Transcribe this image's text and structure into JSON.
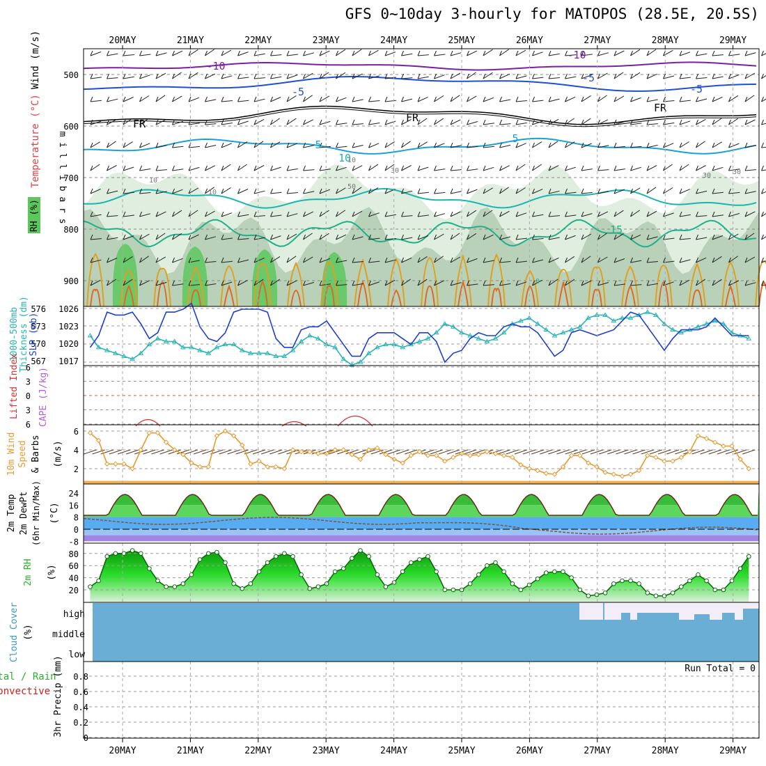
{
  "title": "GFS 0~10day 3-hourly for MATOPOS (28.5E, 20.5S)",
  "dates": [
    "20MAY",
    "21MAY",
    "22MAY",
    "23MAY",
    "24MAY",
    "25MAY",
    "26MAY",
    "27MAY",
    "28MAY",
    "29MAY"
  ],
  "colors": {
    "contour_neg10": "#7b1fa2",
    "contour_neg5": "#1e4fd6",
    "contour_fr": "#000000",
    "contour_5": "#1aa0d8",
    "contour_10": "#19b5b0",
    "contour_15": "#1fb089",
    "contour_20": "#e0a020",
    "contour_25": "#e06a20",
    "rh_dark": "#5cc85c",
    "rh_mid": "#a8c4a8",
    "rh_light": "#dfeedf",
    "slp": "#1c3fd0",
    "thickness": "#2ab5b5",
    "lifted_index": "#d63030",
    "cape": "#b060d0",
    "wind": "#e89a30",
    "cloud": "#6aaed6",
    "cloud_clear": "#f2eef7",
    "rh2m": "#2bd02b",
    "precip_total": "#2bb02b",
    "precip_conv": "#d02020"
  },
  "panels": {
    "main": {
      "ylabel": "m i l l i b a r s",
      "yticks": [
        "500",
        "600",
        "700",
        "800",
        "900"
      ],
      "legend_wind": "Wind (m/s)",
      "legend_temp": "Temperature (°C)",
      "legend_rh": "RH (%)",
      "labels": [
        "-10",
        "-10",
        "-5",
        "-5",
        "FR",
        "FR",
        "FR",
        "-5",
        "5",
        "5",
        "10",
        "15",
        "10",
        "30",
        "30",
        "10",
        "30",
        "50",
        "10",
        "0"
      ]
    },
    "slp": {
      "ylabel_left": "1000-500mb",
      "ylabel_left2": "Thickness (dm)",
      "ylabel_right": "SLP (mb)",
      "ticks_left": [
        "576",
        "573",
        "570",
        "567"
      ],
      "ticks_right": [
        "1026",
        "1023",
        "1020",
        "1017"
      ]
    },
    "li": {
      "ylabel": "Lifted Index",
      "ylabel2": "CAPE (J/kg)",
      "ticks": [
        "6",
        "3",
        "0",
        "3",
        "6"
      ]
    },
    "wind": {
      "ylabel": "10m Wind",
      "ylabel2": "Speed",
      "ylabel3": "& Barbs",
      "ylabel4": "(m/s)",
      "ticks": [
        "6",
        "4",
        "2"
      ]
    },
    "temp": {
      "ylabel": "2m Temp",
      "ylabel2": "2m DewPt",
      "ylabel3": "(6hr Min/Max)",
      "ylabel4": "(°C)",
      "ticks": [
        "24",
        "16",
        "8",
        "0",
        "-8"
      ]
    },
    "rh": {
      "ylabel": "2m RH",
      "ylabel2": "(%)",
      "ticks": [
        "80",
        "60",
        "40",
        "20"
      ]
    },
    "cloud": {
      "ylabel": "Cloud Cover",
      "ylabel2": "(%)",
      "ticks": [
        "high",
        "middle",
        "low"
      ]
    },
    "precip": {
      "ylabel": "Total / Rain",
      "ylabel2": "Convective",
      "ylabel3": "3hr Precip (mm)",
      "ticks": [
        "0.8",
        "0.6",
        "0.4",
        "0.2",
        "0"
      ],
      "run_total": "Run Total = 0"
    }
  },
  "chart_data": {
    "type": "line",
    "x": [
      "19MAY12",
      "19MAY15",
      "19MAY18",
      "19MAY21",
      "20MAY00",
      "20MAY03",
      "20MAY06",
      "20MAY09",
      "20MAY12",
      "20MAY15",
      "20MAY18",
      "20MAY21",
      "21MAY00",
      "21MAY03",
      "21MAY06",
      "21MAY09",
      "21MAY12",
      "21MAY15",
      "21MAY18",
      "21MAY21",
      "22MAY00",
      "22MAY03",
      "22MAY06",
      "22MAY09",
      "22MAY12",
      "22MAY15",
      "22MAY18",
      "22MAY21",
      "23MAY00",
      "23MAY03",
      "23MAY06",
      "23MAY09",
      "23MAY12",
      "23MAY15",
      "23MAY18",
      "23MAY21",
      "24MAY00",
      "24MAY03",
      "24MAY06",
      "24MAY09",
      "24MAY12",
      "24MAY15",
      "24MAY18",
      "24MAY21",
      "25MAY00",
      "25MAY03",
      "25MAY06",
      "25MAY09",
      "25MAY12",
      "25MAY15",
      "25MAY18",
      "25MAY21",
      "26MAY00",
      "26MAY03",
      "26MAY06",
      "26MAY09",
      "26MAY12",
      "26MAY15",
      "26MAY18",
      "26MAY21",
      "27MAY00",
      "27MAY03",
      "27MAY06",
      "27MAY09",
      "27MAY12",
      "27MAY15",
      "27MAY18",
      "27MAY21",
      "28MAY00",
      "28MAY03",
      "28MAY06",
      "28MAY09",
      "28MAY12",
      "28MAY15",
      "28MAY18",
      "28MAY21",
      "29MAY00",
      "29MAY03",
      "29MAY06"
    ],
    "series": [
      {
        "name": "SLP (mb)",
        "values": [
          1019.5,
          1021.5,
          1025.5,
          1025,
          1025,
          1025.5,
          1023.5,
          1021,
          1022,
          1025.5,
          1025.5,
          1026,
          1027,
          1023,
          1021,
          1020.5,
          1022,
          1025.5,
          1026,
          1026,
          1026,
          1025.5,
          1021,
          1019.5,
          1019.5,
          1022.5,
          1023,
          1023,
          1024,
          1022,
          1020,
          1018,
          1018,
          1021,
          1022,
          1022,
          1022,
          1021,
          1020,
          1022,
          1022,
          1020.5,
          1017,
          1018.5,
          1019,
          1021,
          1022,
          1021.5,
          1021.5,
          1023,
          1023.5,
          1023,
          1023,
          1022,
          1020,
          1018,
          1019,
          1022,
          1022.5,
          1022,
          1021.5,
          1022,
          1022.5,
          1024,
          1025.5,
          1025,
          1023,
          1021,
          1019,
          1021,
          1022.5,
          1022.5,
          1022.5,
          1023,
          1024.5,
          1023,
          1021.5,
          1021.5,
          1021.5
        ]
      },
      {
        "name": "Thickness (dm)",
        "values": [
          571.5,
          569.5,
          569,
          568.5,
          568,
          567.5,
          568.5,
          570,
          571,
          570.5,
          570.5,
          569.5,
          569.5,
          569,
          568.5,
          569.5,
          570,
          570,
          569,
          568.5,
          568.5,
          568.5,
          568,
          568,
          569,
          570.5,
          571.5,
          571,
          570,
          569.5,
          567.5,
          566.5,
          567,
          568.5,
          569.5,
          570,
          570,
          569.5,
          570,
          570.5,
          571,
          572,
          573.5,
          573,
          572,
          571.5,
          571,
          570.5,
          571,
          572,
          573.5,
          574,
          574.5,
          573.5,
          572.5,
          571.5,
          572,
          572.5,
          573,
          574.5,
          575,
          575,
          574,
          574.5,
          574.5,
          575,
          575.5,
          575,
          573.5,
          572.5,
          572,
          572.5,
          573,
          573.5,
          574,
          573.5,
          572,
          571.5,
          571
        ]
      },
      {
        "name": "10m Wind Speed (m/s)",
        "values": [
          5.8,
          5,
          2.5,
          2.5,
          2.5,
          2,
          4,
          5.8,
          5.8,
          4.8,
          4,
          3.5,
          2.6,
          2.2,
          2.2,
          5.5,
          6,
          5.5,
          4.5,
          2.5,
          2.8,
          2.2,
          2.2,
          2,
          4,
          3.8,
          3.8,
          3.6,
          3.6,
          4,
          4,
          3.5,
          3,
          4,
          4.2,
          3.5,
          3,
          2.6,
          3.4,
          3.8,
          3.4,
          3.4,
          2.8,
          3.2,
          3.6,
          3.4,
          3.5,
          3.8,
          3.6,
          3.4,
          3.2,
          2.4,
          2,
          1.8,
          1.5,
          1.4,
          2.2,
          3.4,
          3.4,
          2.6,
          2.2,
          1.6,
          1.4,
          1.2,
          1.4,
          1.8,
          3.4,
          3.2,
          2.8,
          2.8,
          3.2,
          3.8,
          5.5,
          5.2,
          4.8,
          4.4,
          4.4,
          3,
          2
        ]
      },
      {
        "name": "2m RH (%)",
        "values": [
          25,
          35,
          75,
          80,
          80,
          85,
          80,
          55,
          35,
          25,
          25,
          30,
          45,
          70,
          80,
          82,
          65,
          30,
          22,
          30,
          50,
          65,
          75,
          80,
          75,
          45,
          22,
          25,
          30,
          50,
          55,
          72,
          85,
          75,
          45,
          25,
          32,
          50,
          65,
          70,
          75,
          50,
          20,
          20,
          20,
          30,
          45,
          60,
          65,
          50,
          30,
          20,
          28,
          38,
          48,
          50,
          50,
          40,
          20,
          10,
          12,
          15,
          30,
          35,
          35,
          30,
          15,
          10,
          10,
          15,
          25,
          35,
          45,
          35,
          20,
          20,
          35,
          55,
          75
        ]
      }
    ]
  }
}
